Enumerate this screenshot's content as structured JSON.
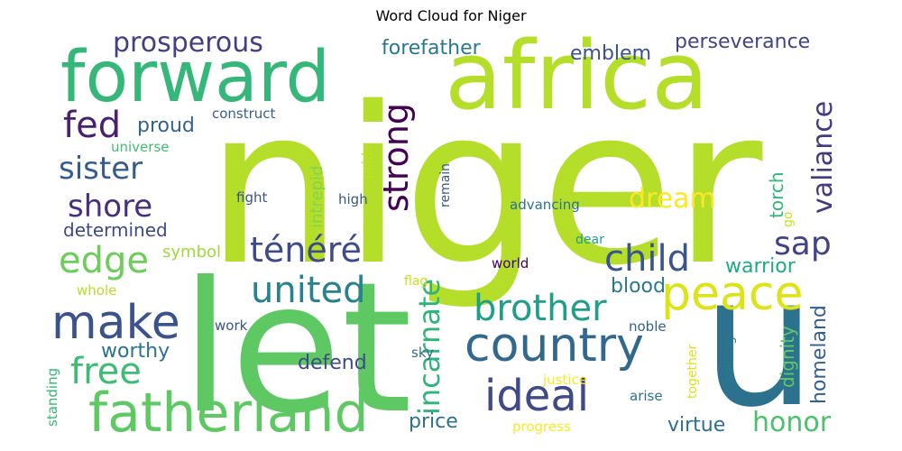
{
  "chart_data": {
    "type": "wordcloud",
    "title": "Word Cloud for Niger",
    "background": "#ffffff",
    "colormap": "viridis",
    "words": [
      {
        "text": "niger",
        "weight": 1.0,
        "color": "#b5de2b"
      },
      {
        "text": "let",
        "weight": 0.95,
        "color": "#5ec962"
      },
      {
        "text": "africa",
        "weight": 0.85,
        "color": "#b5de2b"
      },
      {
        "text": "u",
        "weight": 0.8,
        "color": "#2c728e"
      },
      {
        "text": "forward",
        "weight": 0.6,
        "color": "#35b779"
      },
      {
        "text": "fatherland",
        "weight": 0.55,
        "color": "#5ec962"
      },
      {
        "text": "country",
        "weight": 0.5,
        "color": "#31688e"
      },
      {
        "text": "peace",
        "weight": 0.5,
        "color": "#dde318"
      },
      {
        "text": "make",
        "weight": 0.5,
        "color": "#3b528b"
      },
      {
        "text": "ideal",
        "weight": 0.45,
        "color": "#3e4a89"
      },
      {
        "text": "united",
        "weight": 0.4,
        "color": "#26828e"
      },
      {
        "text": "brother",
        "weight": 0.38,
        "color": "#1f9e89"
      },
      {
        "text": "free",
        "weight": 0.38,
        "color": "#3dbc74"
      },
      {
        "text": "child",
        "weight": 0.35,
        "color": "#39568c"
      },
      {
        "text": "fed",
        "weight": 0.35,
        "color": "#482173"
      },
      {
        "text": "ténéré",
        "weight": 0.33,
        "color": "#3e4a89"
      },
      {
        "text": "strong",
        "weight": 0.33,
        "color": "#440154"
      },
      {
        "text": "edge",
        "weight": 0.33,
        "color": "#6ccd5a"
      },
      {
        "text": "sister",
        "weight": 0.32,
        "color": "#365c8d"
      },
      {
        "text": "shore",
        "weight": 0.32,
        "color": "#46307e"
      },
      {
        "text": "sap",
        "weight": 0.32,
        "color": "#404387"
      },
      {
        "text": "incarnate",
        "weight": 0.3,
        "color": "#2fb47c"
      },
      {
        "text": "prosperous",
        "weight": 0.28,
        "color": "#433e85"
      },
      {
        "text": "valiance",
        "weight": 0.28,
        "color": "#443983"
      },
      {
        "text": "dream",
        "weight": 0.28,
        "color": "#fde725"
      },
      {
        "text": "honor",
        "weight": 0.27,
        "color": "#4ac16d"
      },
      {
        "text": "emblem",
        "weight": 0.22,
        "color": "#3b528b"
      },
      {
        "text": "perseverance",
        "weight": 0.22,
        "color": "#414487"
      },
      {
        "text": "forefather",
        "weight": 0.22,
        "color": "#2a788e"
      },
      {
        "text": "proud",
        "weight": 0.22,
        "color": "#33638d"
      },
      {
        "text": "determined",
        "weight": 0.2,
        "color": "#3e4989"
      },
      {
        "text": "worthy",
        "weight": 0.2,
        "color": "#2c728e"
      },
      {
        "text": "defend",
        "weight": 0.2,
        "color": "#3e4a89"
      },
      {
        "text": "blood",
        "weight": 0.2,
        "color": "#2a788e"
      },
      {
        "text": "warrior",
        "weight": 0.2,
        "color": "#22a884"
      },
      {
        "text": "price",
        "weight": 0.2,
        "color": "#2c728e"
      },
      {
        "text": "virtue",
        "weight": 0.2,
        "color": "#2d708e"
      },
      {
        "text": "homeland",
        "weight": 0.18,
        "color": "#355f8d"
      },
      {
        "text": "symbol",
        "weight": 0.17,
        "color": "#a0da39"
      },
      {
        "text": "dignity",
        "weight": 0.17,
        "color": "#5ec962"
      },
      {
        "text": "torch",
        "weight": 0.17,
        "color": "#32b67a"
      },
      {
        "text": "intrepid",
        "weight": 0.17,
        "color": "#84d44b"
      },
      {
        "text": "construct",
        "weight": 0.13,
        "color": "#355f8d"
      },
      {
        "text": "universe",
        "weight": 0.13,
        "color": "#40bd72"
      },
      {
        "text": "fight",
        "weight": 0.13,
        "color": "#3b528b"
      },
      {
        "text": "high",
        "weight": 0.13,
        "color": "#39568c"
      },
      {
        "text": "pride",
        "weight": 0.13,
        "color": "#c2df23"
      },
      {
        "text": "remain",
        "weight": 0.13,
        "color": "#39568c"
      },
      {
        "text": "advancing",
        "weight": 0.13,
        "color": "#2c728e"
      },
      {
        "text": "go",
        "weight": 0.12,
        "color": "#c8e020"
      },
      {
        "text": "dear",
        "weight": 0.12,
        "color": "#1f9e89"
      },
      {
        "text": "world",
        "weight": 0.13,
        "color": "#440154"
      },
      {
        "text": "flag",
        "weight": 0.13,
        "color": "#c8e020"
      },
      {
        "text": "whole",
        "weight": 0.13,
        "color": "#b5de2b"
      },
      {
        "text": "work",
        "weight": 0.13,
        "color": "#3b528b"
      },
      {
        "text": "noble",
        "weight": 0.13,
        "color": "#35608d"
      },
      {
        "text": "holding",
        "weight": 0.13,
        "color": "#2a788e"
      },
      {
        "text": "together",
        "weight": 0.13,
        "color": "#dde318"
      },
      {
        "text": "sky",
        "weight": 0.13,
        "color": "#31688e"
      },
      {
        "text": "justice",
        "weight": 0.13,
        "color": "#fde725"
      },
      {
        "text": "arise",
        "weight": 0.13,
        "color": "#2c728e"
      },
      {
        "text": "standing",
        "weight": 0.13,
        "color": "#35b779"
      },
      {
        "text": "progress",
        "weight": 0.13,
        "color": "#fde725"
      }
    ]
  }
}
